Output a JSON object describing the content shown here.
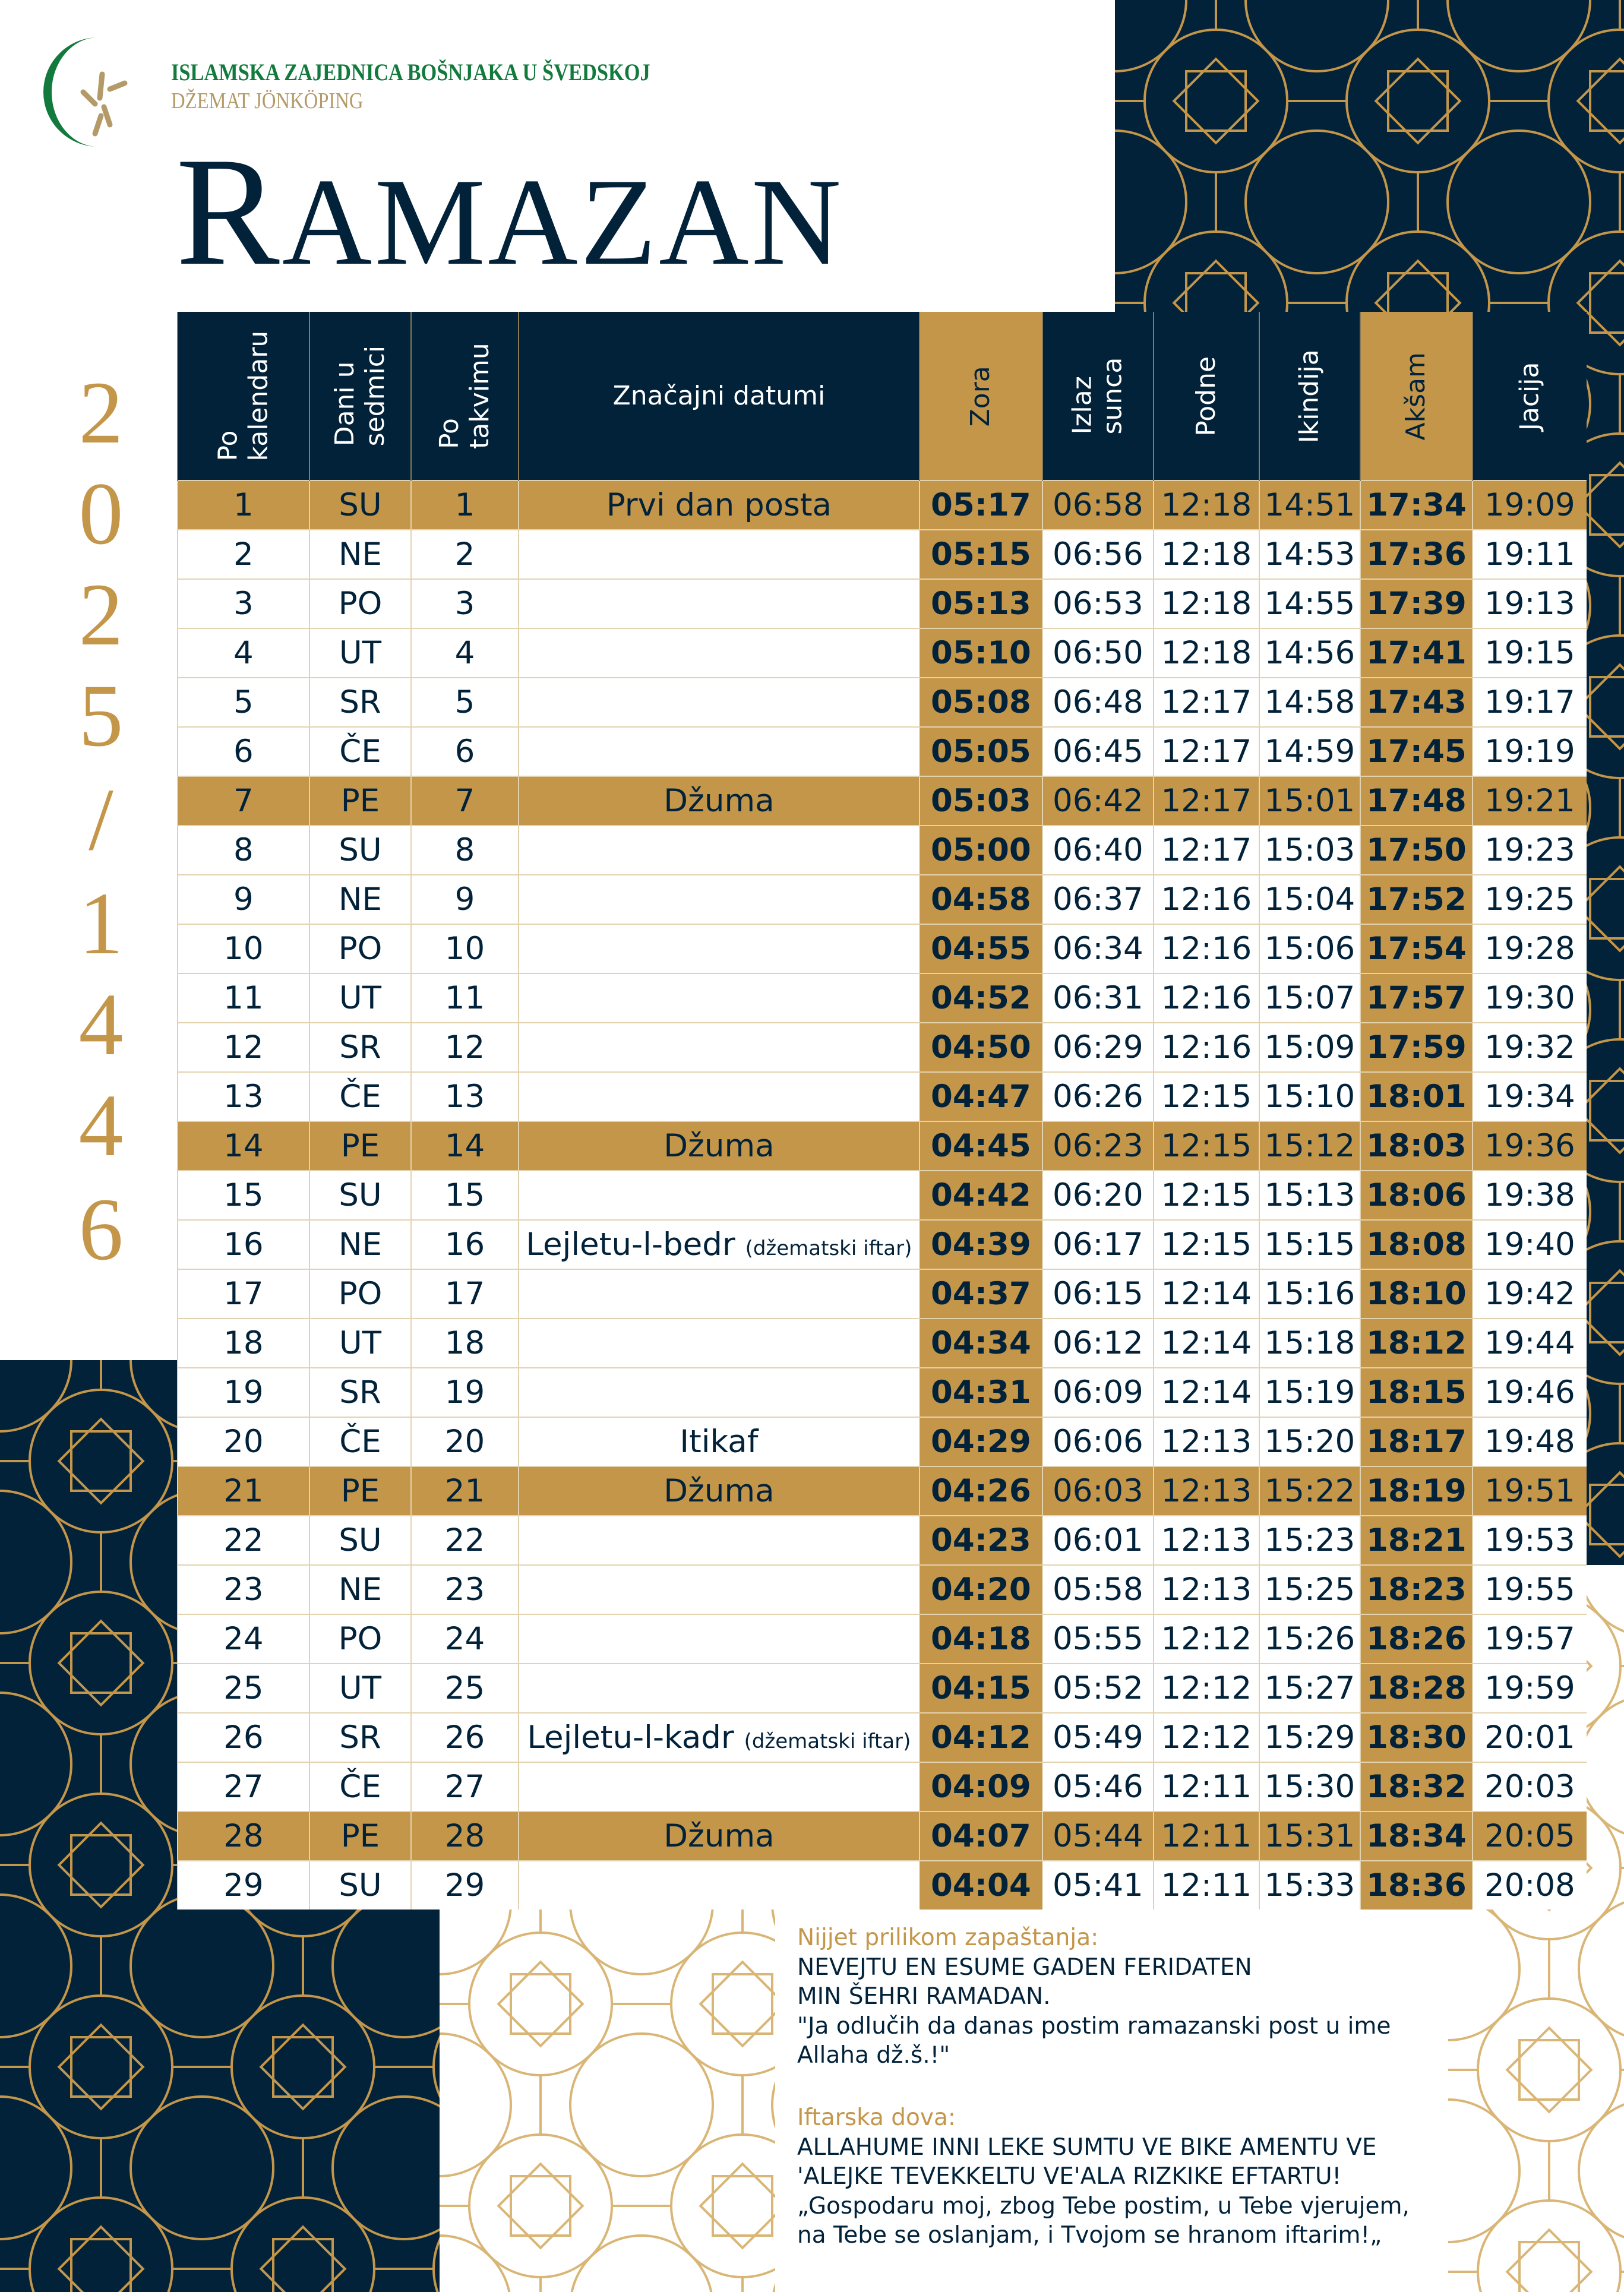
{
  "org": {
    "name": "ISLAMSKA ZAJEDNICA BOŠNJAKA U ŠVEDSKOJ",
    "subtitle": "DŽEMAT JÖNKÖPING"
  },
  "title": {
    "first": "R",
    "rest": "AMAZAN"
  },
  "year_chars": [
    "2",
    "0",
    "2",
    "5",
    "/",
    "1",
    "4",
    "4",
    "6"
  ],
  "colors": {
    "navy": "#02223a",
    "gold": "#c4964a",
    "green": "#127a3c"
  },
  "table": {
    "headers": [
      {
        "label": "Po kalendaru",
        "lines": [
          "Po",
          "kalendaru"
        ]
      },
      {
        "label": "Dani u sedmici",
        "lines": [
          "Dani u",
          "sedmici"
        ]
      },
      {
        "label": "Po takvimu",
        "lines": [
          "Po",
          "takvimu"
        ]
      },
      {
        "label": "Značajni datumi",
        "lines": [
          "Značajni datumi"
        ]
      },
      {
        "label": "Zora",
        "lines": [
          "Zora"
        ]
      },
      {
        "label": "Izlaz sunca",
        "lines": [
          "Izlaz",
          "sunca"
        ]
      },
      {
        "label": "Podne",
        "lines": [
          "Podne"
        ]
      },
      {
        "label": "Ikindija",
        "lines": [
          "Ikindija"
        ]
      },
      {
        "label": "Akšam",
        "lines": [
          "Akšam"
        ]
      },
      {
        "label": "Jacija",
        "lines": [
          "Jacija"
        ]
      }
    ],
    "rows": [
      {
        "cal": "1",
        "day": "SU",
        "tak": "1",
        "event": "Prvi dan posta",
        "note": "",
        "zora": "05:17",
        "izlaz": "06:58",
        "podne": "12:18",
        "ikindija": "14:51",
        "aksam": "17:34",
        "jacija": "19:09",
        "highlight": true
      },
      {
        "cal": "2",
        "day": "NE",
        "tak": "2",
        "event": "",
        "note": "",
        "zora": "05:15",
        "izlaz": "06:56",
        "podne": "12:18",
        "ikindija": "14:53",
        "aksam": "17:36",
        "jacija": "19:11",
        "highlight": false
      },
      {
        "cal": "3",
        "day": "PO",
        "tak": "3",
        "event": "",
        "note": "",
        "zora": "05:13",
        "izlaz": "06:53",
        "podne": "12:18",
        "ikindija": "14:55",
        "aksam": "17:39",
        "jacija": "19:13",
        "highlight": false
      },
      {
        "cal": "4",
        "day": "UT",
        "tak": "4",
        "event": "",
        "note": "",
        "zora": "05:10",
        "izlaz": "06:50",
        "podne": "12:18",
        "ikindija": "14:56",
        "aksam": "17:41",
        "jacija": "19:15",
        "highlight": false
      },
      {
        "cal": "5",
        "day": "SR",
        "tak": "5",
        "event": "",
        "note": "",
        "zora": "05:08",
        "izlaz": "06:48",
        "podne": "12:17",
        "ikindija": "14:58",
        "aksam": "17:43",
        "jacija": "19:17",
        "highlight": false
      },
      {
        "cal": "6",
        "day": "ČE",
        "tak": "6",
        "event": "",
        "note": "",
        "zora": "05:05",
        "izlaz": "06:45",
        "podne": "12:17",
        "ikindija": "14:59",
        "aksam": "17:45",
        "jacija": "19:19",
        "highlight": false
      },
      {
        "cal": "7",
        "day": "PE",
        "tak": "7",
        "event": "Džuma",
        "note": "",
        "zora": "05:03",
        "izlaz": "06:42",
        "podne": "12:17",
        "ikindija": "15:01",
        "aksam": "17:48",
        "jacija": "19:21",
        "highlight": true
      },
      {
        "cal": "8",
        "day": "SU",
        "tak": "8",
        "event": "",
        "note": "",
        "zora": "05:00",
        "izlaz": "06:40",
        "podne": "12:17",
        "ikindija": "15:03",
        "aksam": "17:50",
        "jacija": "19:23",
        "highlight": false
      },
      {
        "cal": "9",
        "day": "NE",
        "tak": "9",
        "event": "",
        "note": "",
        "zora": "04:58",
        "izlaz": "06:37",
        "podne": "12:16",
        "ikindija": "15:04",
        "aksam": "17:52",
        "jacija": "19:25",
        "highlight": false
      },
      {
        "cal": "10",
        "day": "PO",
        "tak": "10",
        "event": "",
        "note": "",
        "zora": "04:55",
        "izlaz": "06:34",
        "podne": "12:16",
        "ikindija": "15:06",
        "aksam": "17:54",
        "jacija": "19:28",
        "highlight": false
      },
      {
        "cal": "11",
        "day": "UT",
        "tak": "11",
        "event": "",
        "note": "",
        "zora": "04:52",
        "izlaz": "06:31",
        "podne": "12:16",
        "ikindija": "15:07",
        "aksam": "17:57",
        "jacija": "19:30",
        "highlight": false
      },
      {
        "cal": "12",
        "day": "SR",
        "tak": "12",
        "event": "",
        "note": "",
        "zora": "04:50",
        "izlaz": "06:29",
        "podne": "12:16",
        "ikindija": "15:09",
        "aksam": "17:59",
        "jacija": "19:32",
        "highlight": false
      },
      {
        "cal": "13",
        "day": "ČE",
        "tak": "13",
        "event": "",
        "note": "",
        "zora": "04:47",
        "izlaz": "06:26",
        "podne": "12:15",
        "ikindija": "15:10",
        "aksam": "18:01",
        "jacija": "19:34",
        "highlight": false
      },
      {
        "cal": "14",
        "day": "PE",
        "tak": "14",
        "event": "Džuma",
        "note": "",
        "zora": "04:45",
        "izlaz": "06:23",
        "podne": "12:15",
        "ikindija": "15:12",
        "aksam": "18:03",
        "jacija": "19:36",
        "highlight": true
      },
      {
        "cal": "15",
        "day": "SU",
        "tak": "15",
        "event": "",
        "note": "",
        "zora": "04:42",
        "izlaz": "06:20",
        "podne": "12:15",
        "ikindija": "15:13",
        "aksam": "18:06",
        "jacija": "19:38",
        "highlight": false
      },
      {
        "cal": "16",
        "day": "NE",
        "tak": "16",
        "event": "Lejletu-l-bedr",
        "note": "(džematski iftar)",
        "zora": "04:39",
        "izlaz": "06:17",
        "podne": "12:15",
        "ikindija": "15:15",
        "aksam": "18:08",
        "jacija": "19:40",
        "highlight": false
      },
      {
        "cal": "17",
        "day": "PO",
        "tak": "17",
        "event": "",
        "note": "",
        "zora": "04:37",
        "izlaz": "06:15",
        "podne": "12:14",
        "ikindija": "15:16",
        "aksam": "18:10",
        "jacija": "19:42",
        "highlight": false
      },
      {
        "cal": "18",
        "day": "UT",
        "tak": "18",
        "event": "",
        "note": "",
        "zora": "04:34",
        "izlaz": "06:12",
        "podne": "12:14",
        "ikindija": "15:18",
        "aksam": "18:12",
        "jacija": "19:44",
        "highlight": false
      },
      {
        "cal": "19",
        "day": "SR",
        "tak": "19",
        "event": "",
        "note": "",
        "zora": "04:31",
        "izlaz": "06:09",
        "podne": "12:14",
        "ikindija": "15:19",
        "aksam": "18:15",
        "jacija": "19:46",
        "highlight": false
      },
      {
        "cal": "20",
        "day": "ČE",
        "tak": "20",
        "event": "Itikaf",
        "note": "",
        "zora": "04:29",
        "izlaz": "06:06",
        "podne": "12:13",
        "ikindija": "15:20",
        "aksam": "18:17",
        "jacija": "19:48",
        "highlight": false
      },
      {
        "cal": "21",
        "day": "PE",
        "tak": "21",
        "event": "Džuma",
        "note": "",
        "zora": "04:26",
        "izlaz": "06:03",
        "podne": "12:13",
        "ikindija": "15:22",
        "aksam": "18:19",
        "jacija": "19:51",
        "highlight": true
      },
      {
        "cal": "22",
        "day": "SU",
        "tak": "22",
        "event": "",
        "note": "",
        "zora": "04:23",
        "izlaz": "06:01",
        "podne": "12:13",
        "ikindija": "15:23",
        "aksam": "18:21",
        "jacija": "19:53",
        "highlight": false
      },
      {
        "cal": "23",
        "day": "NE",
        "tak": "23",
        "event": "",
        "note": "",
        "zora": "04:20",
        "izlaz": "05:58",
        "podne": "12:13",
        "ikindija": "15:25",
        "aksam": "18:23",
        "jacija": "19:55",
        "highlight": false
      },
      {
        "cal": "24",
        "day": "PO",
        "tak": "24",
        "event": "",
        "note": "",
        "zora": "04:18",
        "izlaz": "05:55",
        "podne": "12:12",
        "ikindija": "15:26",
        "aksam": "18:26",
        "jacija": "19:57",
        "highlight": false
      },
      {
        "cal": "25",
        "day": "UT",
        "tak": "25",
        "event": "",
        "note": "",
        "zora": "04:15",
        "izlaz": "05:52",
        "podne": "12:12",
        "ikindija": "15:27",
        "aksam": "18:28",
        "jacija": "19:59",
        "highlight": false
      },
      {
        "cal": "26",
        "day": "SR",
        "tak": "26",
        "event": "Lejletu-l-kadr",
        "note": "(džematski iftar)",
        "zora": "04:12",
        "izlaz": "05:49",
        "podne": "12:12",
        "ikindija": "15:29",
        "aksam": "18:30",
        "jacija": "20:01",
        "highlight": false
      },
      {
        "cal": "27",
        "day": "ČE",
        "tak": "27",
        "event": "",
        "note": "",
        "zora": "04:09",
        "izlaz": "05:46",
        "podne": "12:11",
        "ikindija": "15:30",
        "aksam": "18:32",
        "jacija": "20:03",
        "highlight": false
      },
      {
        "cal": "28",
        "day": "PE",
        "tak": "28",
        "event": "Džuma",
        "note": "",
        "zora": "04:07",
        "izlaz": "05:44",
        "podne": "12:11",
        "ikindija": "15:31",
        "aksam": "18:34",
        "jacija": "20:05",
        "highlight": true
      },
      {
        "cal": "29",
        "day": "SU",
        "tak": "29",
        "event": "",
        "note": "",
        "zora": "04:04",
        "izlaz": "05:41",
        "podne": "12:11",
        "ikindija": "15:33",
        "aksam": "18:36",
        "jacija": "20:08",
        "highlight": false
      }
    ]
  },
  "nijjet": {
    "heading": "Nijjet prilikom zapaštanja:",
    "lines": [
      "NEVEJTU EN ESUME GADEN FERIDATEN",
      "MIN ŠEHRI RAMADAN.",
      "\"Ja odlučih da danas postim ramazanski post u ime",
      "Allaha dž.š.!\""
    ]
  },
  "dova": {
    "heading": "Iftarska dova:",
    "lines": [
      "ALLAHUME INNI LEKE SUMTU VE BIKE AMENTU VE",
      "'ALEJKE TEVEKKELTU VE'ALA RIZKIKE EFTARTU!",
      "„Gospodaru moj, zbog Tebe postim, u Tebe vjerujem,",
      "na Tebe se oslanjam, i Tvojom se hranom iftarim!„"
    ]
  }
}
